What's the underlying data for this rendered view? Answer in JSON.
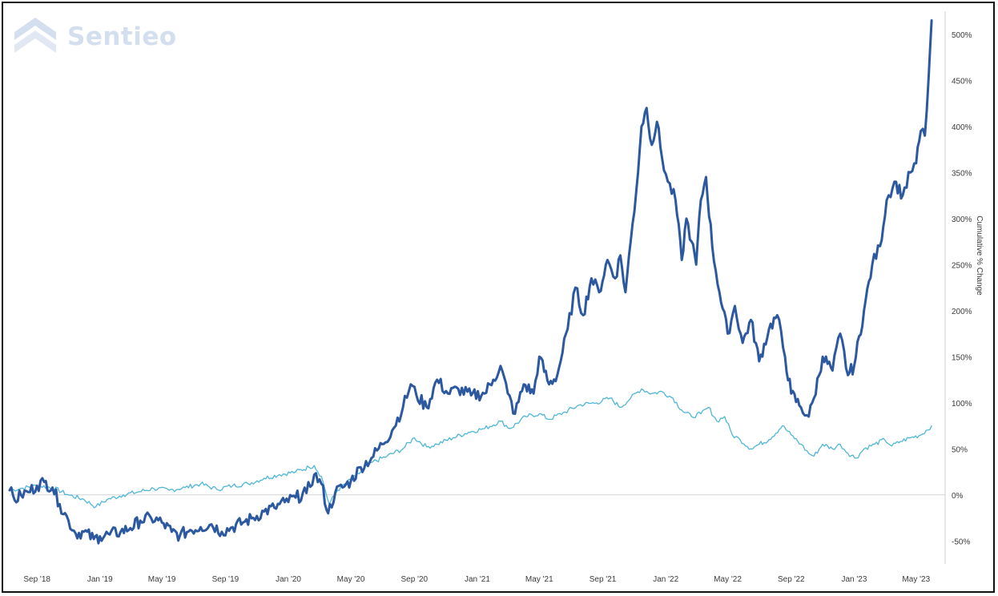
{
  "logo": {
    "text": "Sentieo",
    "icon": "sentieo-chevron-logo",
    "color": "#d3deef"
  },
  "chart_data": {
    "type": "line",
    "ylabel": "Cumulative % Change",
    "xlabel": "",
    "ylim": [
      -75,
      525
    ],
    "xlim": [
      "2018-07-10",
      "2023-06-20"
    ],
    "grid": false,
    "legend": "none",
    "y_ticks": [
      -50,
      0,
      50,
      100,
      150,
      200,
      250,
      300,
      350,
      400,
      450,
      500
    ],
    "y_tick_labels": [
      "-50%",
      "0%",
      "50%",
      "100%",
      "150%",
      "200%",
      "250%",
      "300%",
      "350%",
      "400%",
      "450%",
      "500%"
    ],
    "x_ticks": [
      {
        "date": "2018-09-01",
        "label": "Sep '18"
      },
      {
        "date": "2019-01-01",
        "label": "Jan '19"
      },
      {
        "date": "2019-05-01",
        "label": "May '19"
      },
      {
        "date": "2019-09-01",
        "label": "Sep '19"
      },
      {
        "date": "2020-01-01",
        "label": "Jan '20"
      },
      {
        "date": "2020-05-01",
        "label": "May '20"
      },
      {
        "date": "2020-09-01",
        "label": "Sep '20"
      },
      {
        "date": "2021-01-01",
        "label": "Jan '21"
      },
      {
        "date": "2021-05-01",
        "label": "May '21"
      },
      {
        "date": "2021-09-01",
        "label": "Sep '21"
      },
      {
        "date": "2022-01-01",
        "label": "Jan '22"
      },
      {
        "date": "2022-05-01",
        "label": "May '22"
      },
      {
        "date": "2022-09-01",
        "label": "Sep '22"
      },
      {
        "date": "2023-01-01",
        "label": "Jan '23"
      },
      {
        "date": "2023-05-01",
        "label": "May '23"
      }
    ],
    "series": [
      {
        "color": "#2c58a0",
        "points": [
          [
            "2018-07-10",
            5
          ],
          [
            "2018-07-20",
            -6
          ],
          [
            "2018-08-01",
            0
          ],
          [
            "2018-08-15",
            3
          ],
          [
            "2018-09-01",
            10
          ],
          [
            "2018-09-15",
            14
          ],
          [
            "2018-10-01",
            8
          ],
          [
            "2018-10-15",
            -10
          ],
          [
            "2018-11-01",
            -28
          ],
          [
            "2018-11-15",
            -42
          ],
          [
            "2018-12-01",
            -40
          ],
          [
            "2018-12-20",
            -48
          ],
          [
            "2019-01-01",
            -45
          ],
          [
            "2019-01-20",
            -43
          ],
          [
            "2019-02-10",
            -40
          ],
          [
            "2019-03-01",
            -36
          ],
          [
            "2019-03-20",
            -28
          ],
          [
            "2019-04-10",
            -25
          ],
          [
            "2019-05-01",
            -30
          ],
          [
            "2019-05-20",
            -40
          ],
          [
            "2019-06-05",
            -44
          ],
          [
            "2019-06-25",
            -38
          ],
          [
            "2019-07-15",
            -35
          ],
          [
            "2019-08-05",
            -32
          ],
          [
            "2019-08-25",
            -40
          ],
          [
            "2019-09-15",
            -35
          ],
          [
            "2019-10-05",
            -30
          ],
          [
            "2019-10-25",
            -25
          ],
          [
            "2019-11-15",
            -18
          ],
          [
            "2019-12-05",
            -14
          ],
          [
            "2019-12-25",
            -8
          ],
          [
            "2020-01-15",
            -3
          ],
          [
            "2020-02-05",
            2
          ],
          [
            "2020-02-20",
            22
          ],
          [
            "2020-03-05",
            12
          ],
          [
            "2020-03-18",
            -20
          ],
          [
            "2020-04-01",
            3
          ],
          [
            "2020-04-15",
            8
          ],
          [
            "2020-05-01",
            15
          ],
          [
            "2020-05-20",
            30
          ],
          [
            "2020-06-10",
            40
          ],
          [
            "2020-07-01",
            55
          ],
          [
            "2020-07-20",
            70
          ],
          [
            "2020-08-10",
            95
          ],
          [
            "2020-08-25",
            120
          ],
          [
            "2020-09-05",
            108
          ],
          [
            "2020-09-25",
            95
          ],
          [
            "2020-10-15",
            125
          ],
          [
            "2020-11-05",
            110
          ],
          [
            "2020-11-25",
            115
          ],
          [
            "2020-12-20",
            108
          ],
          [
            "2021-01-15",
            110
          ],
          [
            "2021-02-01",
            125
          ],
          [
            "2021-02-15",
            140
          ],
          [
            "2021-03-01",
            110
          ],
          [
            "2021-03-15",
            88
          ],
          [
            "2021-04-01",
            120
          ],
          [
            "2021-04-20",
            110
          ],
          [
            "2021-05-01",
            150
          ],
          [
            "2021-05-20",
            120
          ],
          [
            "2021-06-05",
            130
          ],
          [
            "2021-06-25",
            180
          ],
          [
            "2021-07-10",
            225
          ],
          [
            "2021-07-25",
            195
          ],
          [
            "2021-08-10",
            235
          ],
          [
            "2021-08-25",
            220
          ],
          [
            "2021-09-10",
            255
          ],
          [
            "2021-09-25",
            235
          ],
          [
            "2021-10-05",
            260
          ],
          [
            "2021-10-15",
            220
          ],
          [
            "2021-10-25",
            275
          ],
          [
            "2021-11-05",
            330
          ],
          [
            "2021-11-15",
            400
          ],
          [
            "2021-11-25",
            420
          ],
          [
            "2021-12-05",
            380
          ],
          [
            "2021-12-15",
            405
          ],
          [
            "2021-12-25",
            365
          ],
          [
            "2022-01-05",
            340
          ],
          [
            "2022-01-20",
            320
          ],
          [
            "2022-02-01",
            255
          ],
          [
            "2022-02-10",
            300
          ],
          [
            "2022-02-20",
            275
          ],
          [
            "2022-03-01",
            250
          ],
          [
            "2022-03-10",
            320
          ],
          [
            "2022-03-20",
            345
          ],
          [
            "2022-04-01",
            270
          ],
          [
            "2022-04-15",
            220
          ],
          [
            "2022-05-01",
            175
          ],
          [
            "2022-05-15",
            205
          ],
          [
            "2022-05-30",
            165
          ],
          [
            "2022-06-15",
            190
          ],
          [
            "2022-07-01",
            145
          ],
          [
            "2022-07-20",
            180
          ],
          [
            "2022-08-05",
            195
          ],
          [
            "2022-08-20",
            150
          ],
          [
            "2022-09-01",
            110
          ],
          [
            "2022-09-20",
            95
          ],
          [
            "2022-10-05",
            85
          ],
          [
            "2022-10-15",
            105
          ],
          [
            "2022-11-01",
            150
          ],
          [
            "2022-11-20",
            135
          ],
          [
            "2022-12-05",
            175
          ],
          [
            "2022-12-20",
            130
          ],
          [
            "2023-01-01",
            140
          ],
          [
            "2023-01-20",
            200
          ],
          [
            "2023-02-05",
            250
          ],
          [
            "2023-02-20",
            270
          ],
          [
            "2023-03-05",
            320
          ],
          [
            "2023-03-20",
            340
          ],
          [
            "2023-04-05",
            325
          ],
          [
            "2023-04-20",
            350
          ],
          [
            "2023-05-01",
            360
          ],
          [
            "2023-05-10",
            395
          ],
          [
            "2023-05-18",
            390
          ],
          [
            "2023-05-25",
            450
          ],
          [
            "2023-05-31",
            515
          ]
        ]
      },
      {
        "color": "#4eb6d6",
        "points": [
          [
            "2018-07-10",
            5
          ],
          [
            "2018-08-01",
            7
          ],
          [
            "2018-09-01",
            10
          ],
          [
            "2018-10-01",
            8
          ],
          [
            "2018-11-01",
            0
          ],
          [
            "2018-12-01",
            -5
          ],
          [
            "2018-12-24",
            -13
          ],
          [
            "2019-01-15",
            -5
          ],
          [
            "2019-02-15",
            0
          ],
          [
            "2019-03-15",
            3
          ],
          [
            "2019-04-15",
            7
          ],
          [
            "2019-05-15",
            5
          ],
          [
            "2019-06-15",
            8
          ],
          [
            "2019-07-15",
            12
          ],
          [
            "2019-08-15",
            6
          ],
          [
            "2019-09-15",
            10
          ],
          [
            "2019-10-15",
            12
          ],
          [
            "2019-11-15",
            18
          ],
          [
            "2019-12-15",
            22
          ],
          [
            "2020-01-15",
            25
          ],
          [
            "2020-02-10",
            30
          ],
          [
            "2020-02-20",
            32
          ],
          [
            "2020-03-05",
            20
          ],
          [
            "2020-03-20",
            -10
          ],
          [
            "2020-04-05",
            5
          ],
          [
            "2020-04-20",
            12
          ],
          [
            "2020-05-10",
            20
          ],
          [
            "2020-06-10",
            35
          ],
          [
            "2020-07-10",
            42
          ],
          [
            "2020-08-10",
            50
          ],
          [
            "2020-09-01",
            62
          ],
          [
            "2020-09-25",
            52
          ],
          [
            "2020-10-15",
            55
          ],
          [
            "2020-11-15",
            62
          ],
          [
            "2020-12-15",
            68
          ],
          [
            "2021-01-15",
            72
          ],
          [
            "2021-02-15",
            80
          ],
          [
            "2021-03-05",
            72
          ],
          [
            "2021-04-05",
            85
          ],
          [
            "2021-05-01",
            88
          ],
          [
            "2021-05-20",
            82
          ],
          [
            "2021-06-20",
            90
          ],
          [
            "2021-07-20",
            98
          ],
          [
            "2021-08-20",
            100
          ],
          [
            "2021-09-15",
            105
          ],
          [
            "2021-10-05",
            95
          ],
          [
            "2021-10-25",
            105
          ],
          [
            "2021-11-15",
            115
          ],
          [
            "2021-12-05",
            110
          ],
          [
            "2021-12-25",
            112
          ],
          [
            "2022-01-15",
            105
          ],
          [
            "2022-02-01",
            92
          ],
          [
            "2022-02-20",
            85
          ],
          [
            "2022-03-10",
            88
          ],
          [
            "2022-03-25",
            95
          ],
          [
            "2022-04-10",
            80
          ],
          [
            "2022-04-25",
            85
          ],
          [
            "2022-05-10",
            65
          ],
          [
            "2022-05-25",
            60
          ],
          [
            "2022-06-15",
            50
          ],
          [
            "2022-07-01",
            55
          ],
          [
            "2022-07-20",
            60
          ],
          [
            "2022-08-15",
            75
          ],
          [
            "2022-09-01",
            65
          ],
          [
            "2022-09-20",
            55
          ],
          [
            "2022-10-05",
            45
          ],
          [
            "2022-10-15",
            42
          ],
          [
            "2022-11-01",
            55
          ],
          [
            "2022-11-20",
            50
          ],
          [
            "2022-12-05",
            55
          ],
          [
            "2022-12-20",
            45
          ],
          [
            "2023-01-05",
            40
          ],
          [
            "2023-01-20",
            50
          ],
          [
            "2023-02-10",
            55
          ],
          [
            "2023-03-01",
            60
          ],
          [
            "2023-03-15",
            53
          ],
          [
            "2023-04-01",
            58
          ],
          [
            "2023-04-20",
            62
          ],
          [
            "2023-05-10",
            65
          ],
          [
            "2023-05-31",
            75
          ]
        ]
      }
    ]
  }
}
